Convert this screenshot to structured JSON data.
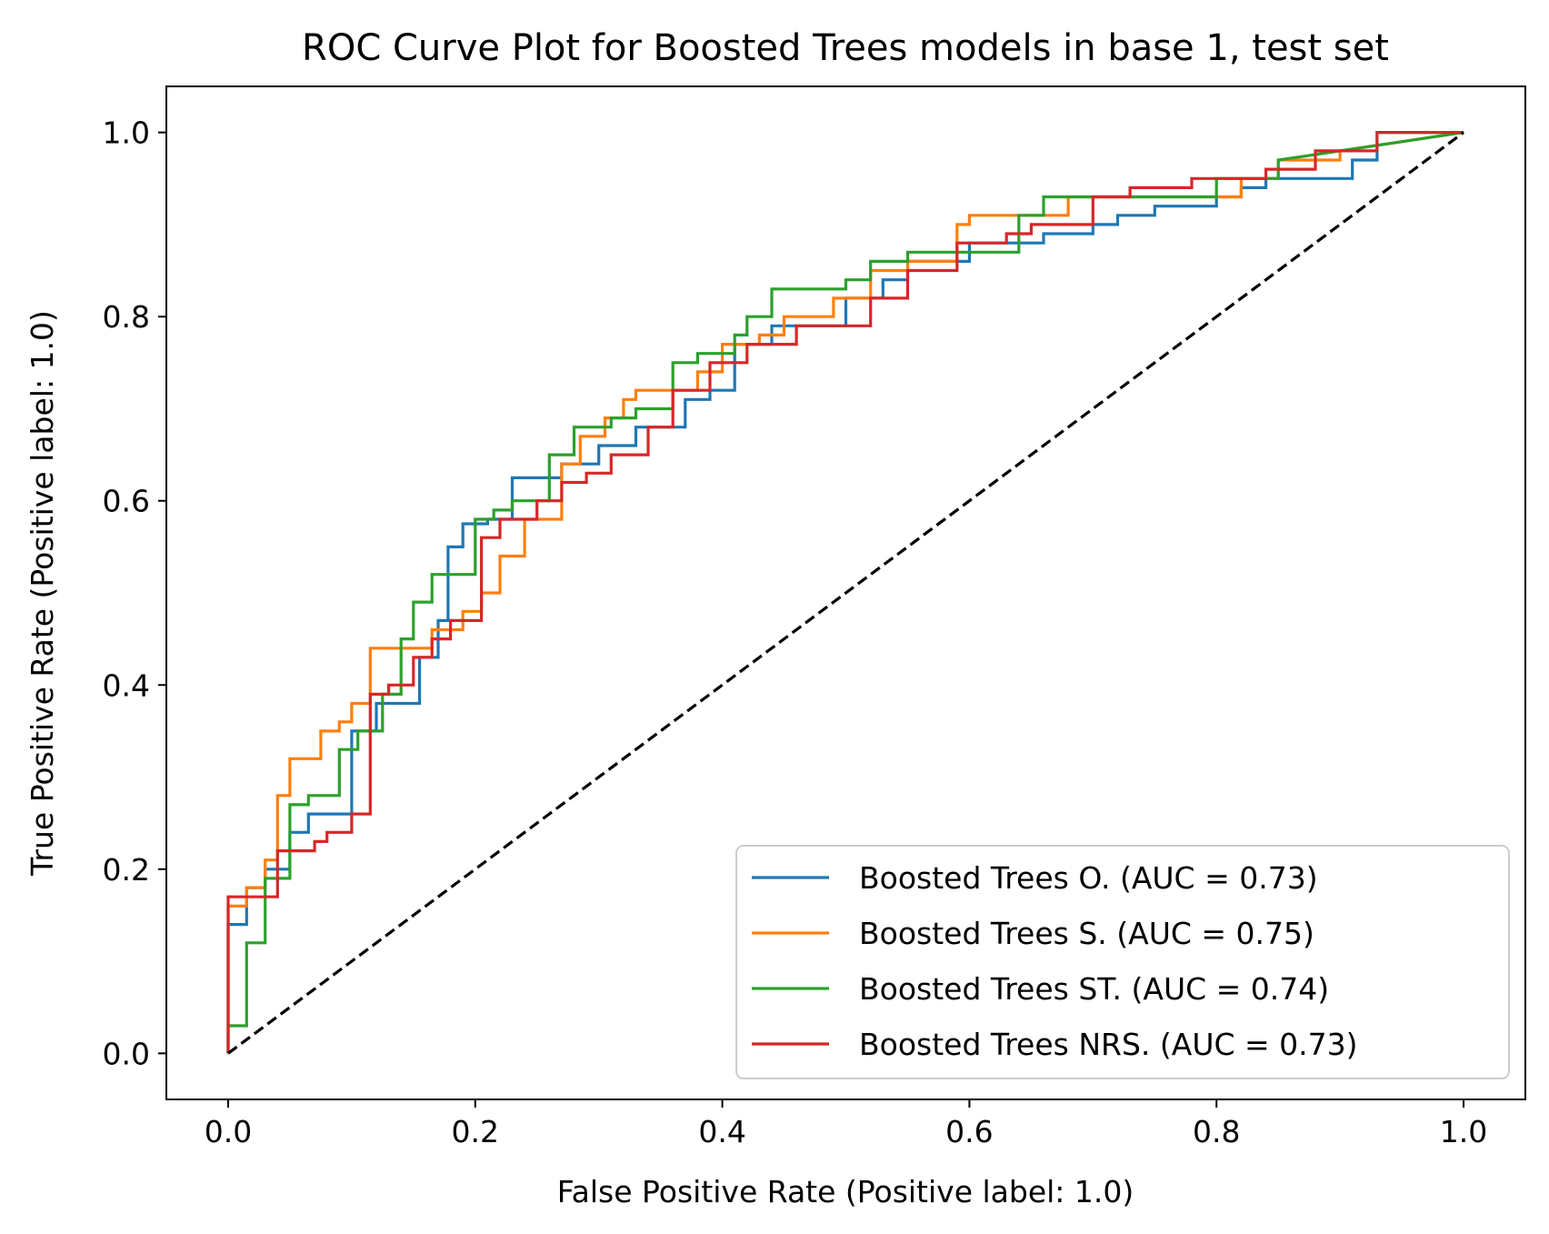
{
  "chart_data": {
    "type": "line",
    "title": "ROC Curve Plot for Boosted Trees models in base 1, test set",
    "xlabel": "False Positive Rate (Positive label: 1.0)",
    "ylabel": "True Positive Rate (Positive label: 1.0)",
    "xlim": [
      -0.05,
      1.05
    ],
    "ylim": [
      -0.05,
      1.05
    ],
    "xticks": [
      "0.0",
      "0.2",
      "0.4",
      "0.6",
      "0.8",
      "1.0"
    ],
    "yticks": [
      "0.0",
      "0.2",
      "0.4",
      "0.6",
      "0.8",
      "1.0"
    ],
    "grid": false,
    "legend_position": "lower-right",
    "series": [
      {
        "name": "Boosted Trees O. (AUC = 0.73)",
        "color": "#1f77b4",
        "step": true,
        "x": [
          0.0,
          0.0,
          0.015,
          0.015,
          0.03,
          0.03,
          0.05,
          0.05,
          0.065,
          0.065,
          0.1,
          0.1,
          0.12,
          0.12,
          0.155,
          0.155,
          0.17,
          0.17,
          0.178,
          0.178,
          0.19,
          0.19,
          0.21,
          0.21,
          0.23,
          0.23,
          0.27,
          0.27,
          0.3,
          0.3,
          0.33,
          0.33,
          0.37,
          0.37,
          0.39,
          0.39,
          0.41,
          0.41,
          0.44,
          0.44,
          0.46,
          0.46,
          0.5,
          0.5,
          0.53,
          0.53,
          0.55,
          0.55,
          0.6,
          0.6,
          0.66,
          0.66,
          0.7,
          0.7,
          0.72,
          0.72,
          0.75,
          0.75,
          0.8,
          0.8,
          0.82,
          0.82,
          0.84,
          0.84,
          0.87,
          0.87,
          0.91,
          0.91,
          0.93,
          0.93,
          1.0
        ],
        "y": [
          0.0,
          0.14,
          0.14,
          0.18,
          0.18,
          0.2,
          0.2,
          0.24,
          0.24,
          0.26,
          0.26,
          0.35,
          0.35,
          0.38,
          0.38,
          0.43,
          0.43,
          0.47,
          0.47,
          0.55,
          0.55,
          0.575,
          0.575,
          0.58,
          0.58,
          0.625,
          0.625,
          0.64,
          0.64,
          0.66,
          0.66,
          0.68,
          0.68,
          0.71,
          0.71,
          0.72,
          0.72,
          0.77,
          0.77,
          0.79,
          0.79,
          0.79,
          0.79,
          0.82,
          0.82,
          0.84,
          0.84,
          0.86,
          0.86,
          0.88,
          0.88,
          0.89,
          0.89,
          0.9,
          0.9,
          0.91,
          0.91,
          0.92,
          0.92,
          0.93,
          0.93,
          0.94,
          0.94,
          0.95,
          0.95,
          0.95,
          0.95,
          0.97,
          0.97,
          1.0,
          1.0
        ]
      },
      {
        "name": "Boosted Trees S. (AUC = 0.75)",
        "color": "#ff7f0e",
        "step": true,
        "x": [
          0.0,
          0.0,
          0.015,
          0.015,
          0.03,
          0.03,
          0.04,
          0.04,
          0.05,
          0.05,
          0.075,
          0.075,
          0.09,
          0.09,
          0.1,
          0.1,
          0.115,
          0.115,
          0.165,
          0.165,
          0.19,
          0.19,
          0.205,
          0.205,
          0.22,
          0.22,
          0.24,
          0.24,
          0.27,
          0.27,
          0.285,
          0.285,
          0.305,
          0.305,
          0.32,
          0.32,
          0.33,
          0.33,
          0.38,
          0.38,
          0.4,
          0.4,
          0.43,
          0.43,
          0.45,
          0.45,
          0.49,
          0.49,
          0.52,
          0.52,
          0.55,
          0.55,
          0.59,
          0.59,
          0.6,
          0.6,
          0.68,
          0.68,
          0.82,
          0.82,
          0.85,
          0.85,
          0.9,
          0.9,
          1.0
        ],
        "y": [
          0.0,
          0.16,
          0.16,
          0.18,
          0.18,
          0.21,
          0.21,
          0.28,
          0.28,
          0.32,
          0.32,
          0.35,
          0.35,
          0.36,
          0.36,
          0.38,
          0.38,
          0.44,
          0.44,
          0.46,
          0.46,
          0.48,
          0.48,
          0.5,
          0.5,
          0.54,
          0.54,
          0.58,
          0.58,
          0.64,
          0.64,
          0.67,
          0.67,
          0.69,
          0.69,
          0.71,
          0.71,
          0.72,
          0.72,
          0.74,
          0.74,
          0.77,
          0.77,
          0.78,
          0.78,
          0.8,
          0.8,
          0.82,
          0.82,
          0.85,
          0.85,
          0.86,
          0.86,
          0.9,
          0.9,
          0.91,
          0.91,
          0.93,
          0.93,
          0.95,
          0.95,
          0.97,
          0.97,
          0.98,
          1.0
        ]
      },
      {
        "name": "Boosted Trees ST. (AUC = 0.74)",
        "color": "#2ca02c",
        "step": true,
        "x": [
          0.0,
          0.0,
          0.015,
          0.015,
          0.03,
          0.03,
          0.05,
          0.05,
          0.065,
          0.065,
          0.09,
          0.09,
          0.105,
          0.105,
          0.125,
          0.125,
          0.14,
          0.14,
          0.15,
          0.15,
          0.165,
          0.165,
          0.2,
          0.2,
          0.215,
          0.215,
          0.23,
          0.23,
          0.26,
          0.26,
          0.28,
          0.28,
          0.31,
          0.31,
          0.33,
          0.33,
          0.36,
          0.36,
          0.38,
          0.38,
          0.41,
          0.41,
          0.42,
          0.42,
          0.44,
          0.44,
          0.5,
          0.5,
          0.52,
          0.52,
          0.55,
          0.55,
          0.6,
          0.6,
          0.64,
          0.64,
          0.66,
          0.66,
          0.8,
          0.8,
          0.85,
          0.85,
          0.95,
          1.0
        ],
        "y": [
          0.0,
          0.03,
          0.03,
          0.12,
          0.12,
          0.19,
          0.19,
          0.27,
          0.27,
          0.28,
          0.28,
          0.33,
          0.33,
          0.35,
          0.35,
          0.39,
          0.39,
          0.45,
          0.45,
          0.49,
          0.49,
          0.52,
          0.52,
          0.58,
          0.58,
          0.59,
          0.59,
          0.6,
          0.6,
          0.65,
          0.65,
          0.68,
          0.68,
          0.69,
          0.69,
          0.7,
          0.7,
          0.75,
          0.75,
          0.76,
          0.76,
          0.78,
          0.78,
          0.8,
          0.8,
          0.83,
          0.83,
          0.84,
          0.84,
          0.86,
          0.86,
          0.87,
          0.87,
          0.87,
          0.87,
          0.91,
          0.91,
          0.93,
          0.93,
          0.95,
          0.95,
          0.97,
          0.99,
          1.0
        ]
      },
      {
        "name": "Boosted Trees NRS. (AUC = 0.73)",
        "color": "#d62728",
        "step": true,
        "x": [
          0.0,
          0.0,
          0.03,
          0.03,
          0.04,
          0.04,
          0.07,
          0.07,
          0.08,
          0.08,
          0.1,
          0.1,
          0.115,
          0.115,
          0.13,
          0.13,
          0.15,
          0.15,
          0.165,
          0.165,
          0.18,
          0.18,
          0.205,
          0.205,
          0.22,
          0.22,
          0.25,
          0.25,
          0.27,
          0.27,
          0.29,
          0.29,
          0.31,
          0.31,
          0.34,
          0.34,
          0.36,
          0.36,
          0.39,
          0.39,
          0.42,
          0.42,
          0.46,
          0.46,
          0.52,
          0.52,
          0.55,
          0.55,
          0.59,
          0.59,
          0.63,
          0.63,
          0.65,
          0.65,
          0.7,
          0.7,
          0.73,
          0.73,
          0.78,
          0.78,
          0.84,
          0.84,
          0.88,
          0.88,
          0.93,
          0.93,
          1.0
        ],
        "y": [
          0.0,
          0.17,
          0.17,
          0.17,
          0.17,
          0.22,
          0.22,
          0.23,
          0.23,
          0.24,
          0.24,
          0.26,
          0.26,
          0.39,
          0.39,
          0.4,
          0.4,
          0.43,
          0.43,
          0.45,
          0.45,
          0.47,
          0.47,
          0.56,
          0.56,
          0.58,
          0.58,
          0.6,
          0.6,
          0.62,
          0.62,
          0.63,
          0.63,
          0.65,
          0.65,
          0.68,
          0.68,
          0.72,
          0.72,
          0.75,
          0.75,
          0.77,
          0.77,
          0.79,
          0.79,
          0.82,
          0.82,
          0.85,
          0.85,
          0.88,
          0.88,
          0.89,
          0.89,
          0.9,
          0.9,
          0.93,
          0.93,
          0.94,
          0.94,
          0.95,
          0.95,
          0.96,
          0.96,
          0.98,
          0.98,
          1.0,
          1.0
        ]
      }
    ],
    "reference_line": {
      "x": [
        0.0,
        1.0
      ],
      "y": [
        0.0,
        1.0
      ],
      "color": "#000000",
      "style": "dashed"
    }
  }
}
